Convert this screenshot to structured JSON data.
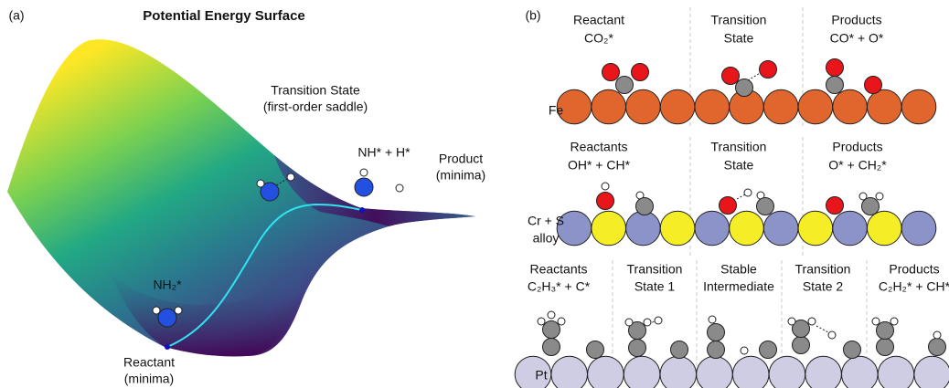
{
  "panel_a": {
    "label": "(a)",
    "title": "Potential Energy Surface",
    "transition_state": [
      "Transition State",
      "(first-order saddle)"
    ],
    "intermediate": "NH* + H*",
    "product": [
      "Product",
      "(minima)"
    ],
    "molecule": "NH₂*",
    "reactant": [
      "Reactant",
      "(minima)"
    ]
  },
  "panel_b": {
    "label": "(b)",
    "rows": [
      {
        "surface": [
          "Fe"
        ],
        "columns": [
          [
            "Reactant",
            "CO₂*"
          ],
          [
            "Transition",
            "State"
          ],
          [
            "Products",
            "CO* + O*"
          ]
        ]
      },
      {
        "surface": [
          "Cr + S",
          "alloy"
        ],
        "columns": [
          [
            "Reactants",
            "OH* + CH*"
          ],
          [
            "Transition",
            "State"
          ],
          [
            "Products",
            "O* + CH₂*"
          ]
        ]
      },
      {
        "surface": [
          "Pt"
        ],
        "columns": [
          [
            "Reactants",
            "C₂H₃* + C*"
          ],
          [
            "Transition",
            "State 1"
          ],
          [
            "Stable",
            "Intermediate"
          ],
          [
            "Transition",
            "State 2"
          ],
          [
            "Products",
            "C₂H₂* + CH*"
          ]
        ]
      }
    ]
  }
}
